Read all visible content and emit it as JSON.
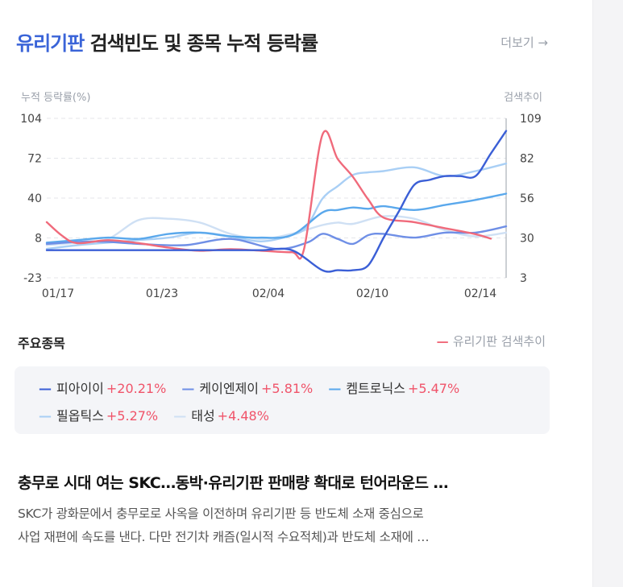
{
  "header": {
    "keyword": "유리기판",
    "title_rest": " 검색빈도 및 종목 누적 등락률",
    "more": "더보기 →"
  },
  "chart_data": {
    "type": "line",
    "x_ticks": [
      "01/17",
      "01/23",
      "02/04",
      "02/10",
      "02/14"
    ],
    "y_left": {
      "label": "누적 등락률(%)",
      "ticks": [
        "104",
        "72",
        "40",
        "8",
        "-23"
      ],
      "range": [
        -23,
        104
      ]
    },
    "y_right": {
      "label": "검색추이",
      "ticks": [
        "109",
        "82",
        "56",
        "30",
        "3"
      ],
      "range": [
        3,
        109
      ]
    },
    "x_range": [
      0,
      30
    ],
    "grid": true,
    "series": [
      {
        "name": "피아이이",
        "color": "#3b5fd6",
        "axis": "left",
        "x": [
          0,
          2,
          4,
          6,
          8,
          10,
          12,
          14,
          16,
          18,
          19,
          20,
          21,
          22,
          23,
          24,
          25,
          26,
          27,
          28,
          29,
          30
        ],
        "y": [
          -1,
          -1,
          -1,
          -1,
          -1,
          -1,
          -1,
          -1,
          -1,
          -17,
          -17,
          -17,
          -13,
          9,
          30,
          51,
          55,
          58,
          58,
          58,
          76,
          94
        ]
      },
      {
        "name": "케이엔제이",
        "color": "#6f8fe6",
        "axis": "left",
        "x": [
          0,
          3,
          6,
          9,
          12,
          15,
          17,
          18,
          19,
          20,
          21,
          22,
          24,
          26,
          28,
          30
        ],
        "y": [
          4,
          6,
          4,
          3,
          8,
          0,
          5,
          12,
          8,
          4,
          11,
          12,
          9,
          13,
          13,
          18
        ]
      },
      {
        "name": "켐트로닉스",
        "color": "#5aa8ec",
        "axis": "left",
        "x": [
          0,
          2,
          4,
          6,
          8,
          10,
          12,
          14,
          16,
          18,
          19,
          20,
          21,
          22,
          24,
          26,
          28,
          30
        ],
        "y": [
          5,
          7,
          9,
          8,
          12,
          13,
          10,
          9,
          11,
          29,
          31,
          33,
          32,
          34,
          31,
          35,
          39,
          44
        ]
      },
      {
        "name": "필옵틱스",
        "color": "#a9cff5",
        "axis": "left",
        "x": [
          0,
          2,
          4,
          6,
          8,
          10,
          12,
          14,
          16,
          17,
          18,
          19,
          20,
          21,
          22,
          24,
          26,
          28,
          30
        ],
        "y": [
          0,
          3,
          5,
          7,
          9,
          13,
          10,
          6,
          11,
          18,
          40,
          50,
          59,
          61,
          62,
          65,
          58,
          62,
          68
        ]
      },
      {
        "name": "태성",
        "color": "#cfe0f4",
        "axis": "left",
        "x": [
          0,
          2,
          4,
          6,
          8,
          10,
          12,
          14,
          16,
          18,
          19,
          20,
          22,
          24,
          26,
          28,
          30
        ],
        "y": [
          3,
          5,
          8,
          23,
          24,
          21,
          12,
          8,
          12,
          19,
          21,
          20,
          26,
          24,
          15,
          10,
          13
        ]
      },
      {
        "name": "유리기판 검색추이",
        "color": "#f06a7b",
        "axis": "right",
        "x": [
          0,
          1,
          2,
          4,
          6,
          8,
          10,
          12,
          14,
          16,
          16.8,
          18,
          19,
          20,
          21,
          22,
          24,
          26,
          28,
          29
        ],
        "y": [
          40,
          31,
          26,
          28,
          26,
          23,
          21,
          22,
          21,
          20,
          22,
          98,
          82,
          70,
          55,
          43,
          40,
          36,
          32,
          29
        ]
      }
    ]
  },
  "stocks_section": {
    "title": "주요종목",
    "search_legend": "유리기판 검색추이",
    "search_legend_color": "#f06a7b"
  },
  "legend": [
    {
      "name": "피아이이",
      "pct": "+20.21%",
      "color": "#3b5fd6"
    },
    {
      "name": "케이엔제이",
      "pct": "+5.81%",
      "color": "#6f8fe6"
    },
    {
      "name": "켐트로닉스",
      "pct": "+5.47%",
      "color": "#5aa8ec"
    },
    {
      "name": "필옵틱스",
      "pct": "+5.27%",
      "color": "#a9cff5"
    },
    {
      "name": "태성",
      "pct": "+4.48%",
      "color": "#cfe0f4"
    }
  ],
  "news": {
    "title": "충무로 시대 여는 SKC…동박·유리기판 판매량 확대로 턴어라운드 …",
    "body_line1": "SKC가 광화문에서 충무로로 사옥을 이전하며 유리기판 등 반도체 소재 중심으로",
    "body_line2": "사업 재편에 속도를 낸다. 다만 전기차 캐즘(일시적 수요적체)과 반도체 소재에 …"
  }
}
